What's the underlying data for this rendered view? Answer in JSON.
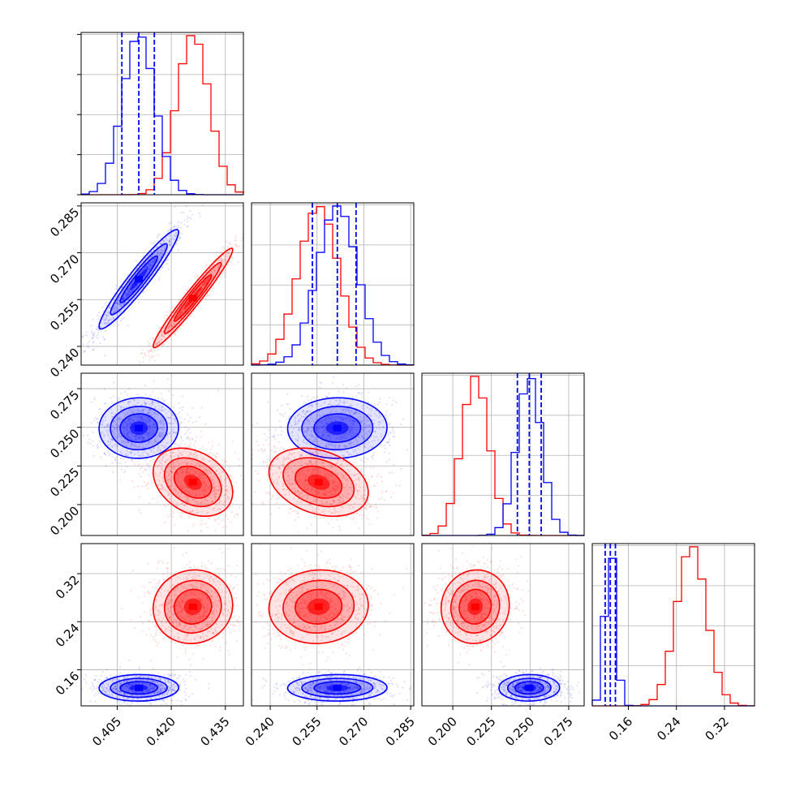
{
  "colors": {
    "series_a": "#0000ff",
    "series_b": "#ff0000",
    "grid": "#b0b0b0"
  },
  "chart_data": {
    "type": "corner",
    "grid": true,
    "parameters": [
      {
        "range": [
          0.395,
          0.44
        ],
        "ticks": [
          "0.405",
          "0.420",
          "0.435"
        ],
        "tick_values": [
          0.405,
          0.42,
          0.435
        ]
      },
      {
        "range": [
          0.234,
          0.286
        ],
        "ticks": [
          "0.240",
          "0.255",
          "0.270",
          "0.285"
        ],
        "tick_values": [
          0.24,
          0.255,
          0.27,
          0.285
        ]
      },
      {
        "range": [
          0.18,
          0.285
        ],
        "ticks": [
          "0.200",
          "0.225",
          "0.250",
          "0.275"
        ],
        "tick_values": [
          0.2,
          0.225,
          0.25,
          0.275
        ]
      },
      {
        "range": [
          0.1,
          0.37
        ],
        "ticks": [
          "0.16",
          "0.24",
          "0.32"
        ],
        "tick_values": [
          0.16,
          0.24,
          0.32
        ]
      }
    ],
    "series": [
      {
        "color": "#0000ff",
        "mean": [
          0.411,
          0.2615,
          0.2495,
          0.13
        ],
        "sd": [
          0.0045,
          0.0065,
          0.008,
          0.009
        ],
        "quantiles": [
          [
            0.4063,
            0.411,
            0.4153
          ],
          [
            0.2535,
            0.2615,
            0.2675
          ],
          [
            0.2418,
            0.2495,
            0.2572
          ],
          [
            0.1215,
            0.13,
            0.1385
          ]
        ]
      },
      {
        "color": "#ff0000",
        "mean": [
          0.426,
          0.2555,
          0.2145,
          0.265
        ],
        "sd": [
          0.0045,
          0.0065,
          0.009,
          0.025
        ]
      }
    ]
  }
}
